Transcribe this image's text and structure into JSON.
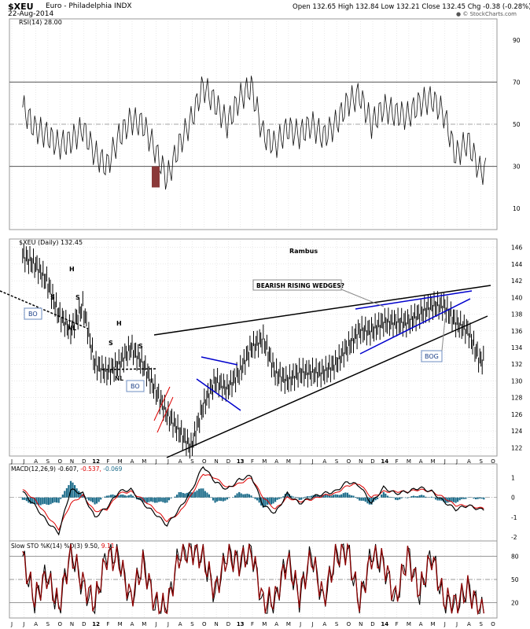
{
  "header": {
    "symbol": "$XEU",
    "name": "Euro - Philadelphia INDX",
    "date": "22-Aug-2014",
    "quote": "Open 132.65 High 132.84 Low 132.21 Close 132.45 Chg -0.38 (-0.28%)",
    "change_arrow": "▼",
    "copyright": "© StockCharts.com",
    "colors": {
      "down": "#e00000"
    }
  },
  "colors": {
    "grid": "#c8c8c8",
    "price": "#000000",
    "wedge": "#0000cc",
    "red_lines": "#dd0000",
    "macd": "#000000",
    "macd_signal": "#dd0000",
    "histogram": "#1f6e8c",
    "sto_k": "#000000",
    "sto_d": "#8b0000",
    "rsi_fill": "#8b3a3a"
  },
  "rsi_panel": {
    "legend": "RSI(14) 28.00",
    "ticks": [
      "90",
      "70",
      "50",
      "30",
      "10"
    ]
  },
  "price_panel": {
    "legend_symbol": "$XEU (Daily) 132.45",
    "ticks": [
      "146",
      "144",
      "142",
      "140",
      "138",
      "136",
      "134",
      "132",
      "130",
      "128",
      "126",
      "124",
      "122"
    ]
  },
  "macd_panel": {
    "legend_prefix": "MACD(12,26,9) -0.607,",
    "legend_signal": "-0.537,",
    "legend_hist": "-0.069",
    "ticks": [
      "1",
      "0",
      "-1",
      "-2"
    ]
  },
  "sto_panel": {
    "legend_prefix": "Slow STO %K(14) %D(3) 9.50,",
    "legend_d": "9.11",
    "ticks": [
      "80",
      "50",
      "20"
    ]
  },
  "annotations": {
    "author": "Rambus",
    "wedges": "BEARISH RISING WEDGES?",
    "bo1": "BO",
    "bo2": "BO",
    "bog": "BOG",
    "h1": "H",
    "s1": "S",
    "s2": "S",
    "nl1": "NL",
    "h2": "H",
    "s3": "S",
    "s4": "S",
    "nl2": "NL"
  },
  "x_axis": {
    "labels": [
      "J",
      "J",
      "A",
      "S",
      "O",
      "N",
      "D",
      "12",
      "F",
      "M",
      "A",
      "M",
      "J",
      "J",
      "A",
      "S",
      "O",
      "N",
      "D",
      "13",
      "F",
      "M",
      "A",
      "M",
      "J",
      "J",
      "A",
      "S",
      "O",
      "N",
      "D",
      "14",
      "F",
      "M",
      "A",
      "M",
      "J",
      "J",
      "A",
      "S",
      "O"
    ]
  },
  "chart_data": [
    {
      "type": "line",
      "title": "RSI(14) 28.00",
      "ylim": [
        0,
        100
      ],
      "reference_lines": [
        70,
        50,
        30
      ],
      "x": [
        "2011-06",
        "2011-07",
        "2011-08",
        "2011-09",
        "2011-10",
        "2011-11",
        "2011-12",
        "2012-01",
        "2012-02",
        "2012-03",
        "2012-04",
        "2012-05",
        "2012-06",
        "2012-07",
        "2012-08",
        "2012-09",
        "2012-10",
        "2012-11",
        "2012-12",
        "2013-01",
        "2013-02",
        "2013-03",
        "2013-04",
        "2013-05",
        "2013-06",
        "2013-07",
        "2013-08",
        "2013-09",
        "2013-10",
        "2013-11",
        "2013-12",
        "2014-01",
        "2014-02",
        "2014-03",
        "2014-04",
        "2014-05",
        "2014-06",
        "2014-07",
        "2014-08"
      ],
      "values": [
        58,
        48,
        45,
        40,
        42,
        48,
        36,
        30,
        44,
        52,
        50,
        38,
        24,
        40,
        52,
        68,
        60,
        50,
        62,
        68,
        45,
        40,
        48,
        45,
        50,
        44,
        50,
        60,
        64,
        50,
        58,
        55,
        54,
        60,
        62,
        55,
        35,
        42,
        28
      ]
    },
    {
      "type": "bar",
      "title": "$XEU (Daily) 132.45",
      "ylim": [
        121,
        147
      ],
      "x": [
        "2011-06",
        "2011-07",
        "2011-08",
        "2011-09",
        "2011-10",
        "2011-11",
        "2011-12",
        "2012-01",
        "2012-02",
        "2012-03",
        "2012-04",
        "2012-05",
        "2012-06",
        "2012-07",
        "2012-08",
        "2012-09",
        "2012-10",
        "2012-11",
        "2012-12",
        "2013-01",
        "2013-02",
        "2013-03",
        "2013-04",
        "2013-05",
        "2013-06",
        "2013-07",
        "2013-08",
        "2013-09",
        "2013-10",
        "2013-11",
        "2013-12",
        "2014-01",
        "2014-02",
        "2014-03",
        "2014-04",
        "2014-05",
        "2014-06",
        "2014-07",
        "2014-08"
      ],
      "values": [
        145,
        144,
        142,
        138,
        136,
        139,
        132,
        131,
        132,
        134,
        132,
        129,
        126,
        124,
        122,
        127,
        130,
        129,
        131,
        134,
        135,
        131,
        130,
        131,
        131,
        131,
        132,
        134,
        136,
        136,
        137,
        137,
        137,
        138,
        139,
        139,
        137,
        136,
        132.45
      ]
    },
    {
      "type": "line",
      "title": "MACD(12,26,9) -0.607, -0.537, -0.069",
      "ylim": [
        -2.2,
        1.7
      ],
      "x": [
        "2011-06",
        "2011-07",
        "2011-08",
        "2011-09",
        "2011-10",
        "2011-11",
        "2011-12",
        "2012-01",
        "2012-02",
        "2012-03",
        "2012-04",
        "2012-05",
        "2012-06",
        "2012-07",
        "2012-08",
        "2012-09",
        "2012-10",
        "2012-11",
        "2012-12",
        "2013-01",
        "2013-02",
        "2013-03",
        "2013-04",
        "2013-05",
        "2013-06",
        "2013-07",
        "2013-08",
        "2013-09",
        "2013-10",
        "2013-11",
        "2013-12",
        "2014-01",
        "2014-02",
        "2014-03",
        "2014-04",
        "2014-05",
        "2014-06",
        "2014-07",
        "2014-08"
      ],
      "series": [
        {
          "name": "MACD",
          "values": [
            0.3,
            -0.4,
            -1.2,
            -1.8,
            0.4,
            0.2,
            -1.0,
            -0.5,
            0.3,
            0.4,
            -0.3,
            -0.8,
            -1.4,
            -0.6,
            0.3,
            1.6,
            0.8,
            0.4,
            0.9,
            1.1,
            -0.4,
            -0.8,
            0.2,
            -0.3,
            0.0,
            0.2,
            0.3,
            0.8,
            0.6,
            -0.3,
            0.5,
            0.2,
            0.3,
            0.5,
            0.3,
            -0.2,
            -0.6,
            -0.4,
            -0.607
          ]
        },
        {
          "name": "Signal",
          "values": [
            0.4,
            -0.1,
            -0.9,
            -1.6,
            -0.3,
            0.1,
            -0.7,
            -0.6,
            0.2,
            0.3,
            -0.1,
            -0.6,
            -1.2,
            -0.8,
            0.1,
            1.2,
            1.0,
            0.5,
            0.7,
            1.0,
            0.0,
            -0.6,
            0.0,
            -0.2,
            -0.1,
            0.1,
            0.2,
            0.6,
            0.7,
            0.0,
            0.3,
            0.3,
            0.3,
            0.4,
            0.3,
            0.0,
            -0.4,
            -0.4,
            -0.537
          ]
        }
      ]
    },
    {
      "type": "line",
      "title": "Slow STO %K(14) %D(3) 9.50, 9.11",
      "ylim": [
        0,
        100
      ],
      "reference_lines": [
        80,
        50,
        20
      ],
      "x": [
        "2011-06",
        "2011-07",
        "2011-08",
        "2011-09",
        "2011-10",
        "2011-11",
        "2011-12",
        "2012-01",
        "2012-02",
        "2012-03",
        "2012-04",
        "2012-05",
        "2012-06",
        "2012-07",
        "2012-08",
        "2012-09",
        "2012-10",
        "2012-11",
        "2012-12",
        "2013-01",
        "2013-02",
        "2013-03",
        "2013-04",
        "2013-05",
        "2013-06",
        "2013-07",
        "2013-08",
        "2013-09",
        "2013-10",
        "2013-11",
        "2013-12",
        "2014-01",
        "2014-02",
        "2014-03",
        "2014-04",
        "2014-05",
        "2014-06",
        "2014-07",
        "2014-08"
      ],
      "series": [
        {
          "name": "%K",
          "values": [
            80,
            20,
            60,
            10,
            90,
            40,
            15,
            85,
            80,
            20,
            75,
            15,
            10,
            85,
            90,
            80,
            30,
            85,
            70,
            90,
            15,
            20,
            80,
            25,
            85,
            20,
            80,
            90,
            15,
            85,
            70,
            20,
            85,
            30,
            85,
            20,
            15,
            40,
            9.5
          ]
        },
        {
          "name": "%D",
          "values": [
            78,
            25,
            55,
            15,
            85,
            45,
            20,
            80,
            75,
            25,
            70,
            20,
            12,
            80,
            88,
            78,
            35,
            80,
            72,
            88,
            20,
            25,
            75,
            30,
            80,
            25,
            78,
            88,
            20,
            80,
            72,
            25,
            80,
            35,
            80,
            25,
            18,
            38,
            9.11
          ]
        }
      ]
    }
  ]
}
